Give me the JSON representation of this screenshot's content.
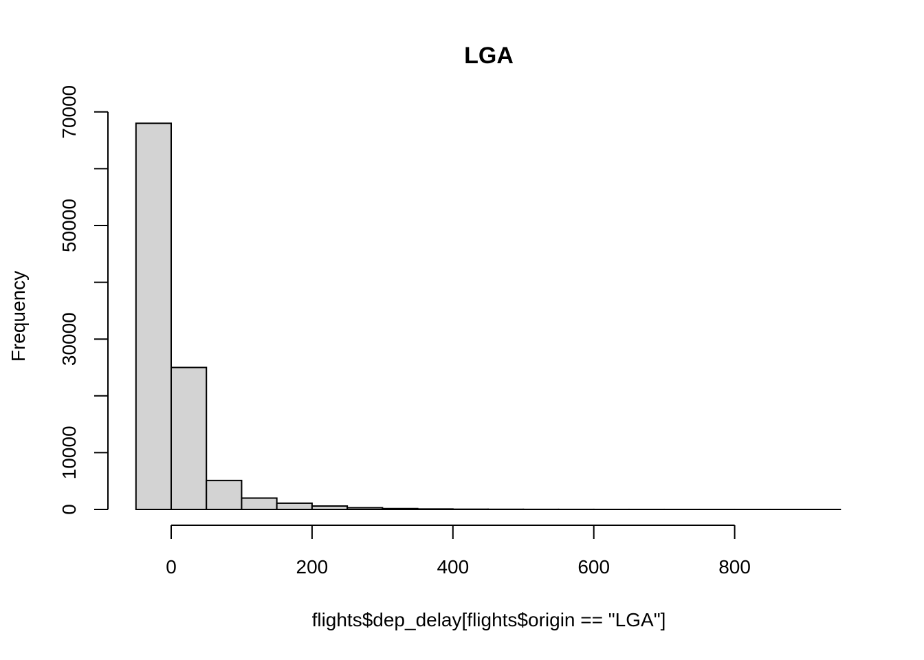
{
  "chart_data": {
    "type": "bar",
    "title": "LGA",
    "xlabel": "flights$dep_delay[flights$origin == \"LGA\"]",
    "ylabel": "Frequency",
    "bin_edges": [
      -50,
      0,
      50,
      100,
      150,
      200,
      250,
      300,
      350,
      400,
      450,
      500,
      550,
      600,
      650,
      700,
      750,
      800,
      850,
      900,
      950
    ],
    "values": [
      68000,
      25000,
      5100,
      2000,
      1100,
      600,
      300,
      150,
      80,
      40,
      25,
      15,
      10,
      6,
      4,
      3,
      2,
      1,
      1,
      1
    ],
    "xlim": [
      -50,
      950
    ],
    "ylim": [
      0,
      70000
    ],
    "x_ticks": [
      "0",
      "200",
      "400",
      "600",
      "800"
    ],
    "y_ticks": [
      "0",
      "10000",
      "30000",
      "50000",
      "70000"
    ],
    "grid": false,
    "legend": "none"
  }
}
